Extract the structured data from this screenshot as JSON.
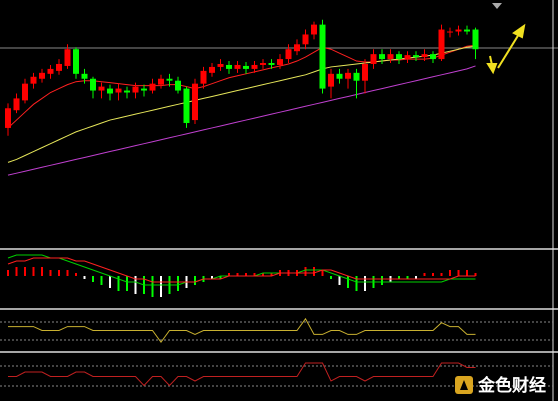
{
  "chart_data": [
    {
      "type": "candlestick",
      "ylim": [
        0,
        248
      ],
      "up_color": "#ff0000",
      "down_color": "#00ff00",
      "open": [
        120,
        138,
        148,
        165,
        170,
        175,
        178,
        183,
        200,
        175,
        170,
        158,
        160,
        156,
        158,
        156,
        160,
        158,
        164,
        170,
        168,
        160,
        128,
        165,
        176,
        182,
        184,
        180,
        183,
        180,
        184,
        186,
        184,
        190,
        198,
        205,
        215,
        225,
        162,
        175,
        170,
        176,
        168,
        185,
        195,
        190,
        195,
        190,
        194,
        192,
        195,
        190,
        218,
        218,
        220,
        220
      ],
      "high": [
        145,
        155,
        170,
        176,
        180,
        184,
        190,
        205,
        202,
        180,
        172,
        166,
        164,
        165,
        162,
        166,
        164,
        170,
        174,
        175,
        172,
        162,
        170,
        182,
        186,
        190,
        188,
        188,
        187,
        188,
        190,
        190,
        195,
        205,
        210,
        220,
        228,
        230,
        180,
        180,
        180,
        180,
        190,
        200,
        200,
        200,
        198,
        198,
        198,
        200,
        198,
        225,
        222,
        224,
        224,
        222
      ],
      "low": [
        112,
        135,
        145,
        160,
        166,
        170,
        174,
        180,
        170,
        165,
        150,
        150,
        148,
        148,
        150,
        150,
        152,
        155,
        160,
        162,
        155,
        120,
        124,
        160,
        172,
        178,
        175,
        176,
        175,
        176,
        180,
        180,
        180,
        186,
        194,
        200,
        210,
        155,
        150,
        165,
        160,
        150,
        155,
        180,
        185,
        186,
        185,
        186,
        188,
        188,
        186,
        188,
        212,
        214,
        215,
        190
      ],
      "close": [
        140,
        150,
        165,
        172,
        176,
        180,
        185,
        200,
        175,
        170,
        158,
        162,
        155,
        160,
        156,
        162,
        158,
        165,
        170,
        168,
        158,
        125,
        165,
        178,
        182,
        185,
        180,
        184,
        180,
        184,
        186,
        184,
        190,
        200,
        205,
        215,
        225,
        160,
        175,
        170,
        176,
        168,
        185,
        195,
        190,
        195,
        190,
        194,
        192,
        195,
        190,
        220,
        218,
        220,
        218,
        200
      ],
      "series": [
        {
          "color": "#ff2020",
          "values": [
            120,
            128,
            136,
            144,
            150,
            156,
            160,
            164,
            167,
            168,
            168,
            167,
            166,
            165,
            164,
            163,
            163,
            163,
            163,
            164,
            164,
            162,
            160,
            162,
            165,
            168,
            171,
            173,
            175,
            177,
            179,
            181,
            183,
            185,
            188,
            192,
            197,
            202,
            200,
            196,
            192,
            188,
            187,
            187,
            188,
            189,
            189,
            190,
            190,
            190,
            191,
            194,
            197,
            200,
            203,
            204
          ]
        },
        {
          "color": "#e6e65a",
          "values": [
            85,
            88,
            92,
            96,
            100,
            104,
            108,
            112,
            116,
            119,
            122,
            125,
            128,
            130,
            132,
            134,
            136,
            138,
            140,
            142,
            144,
            146,
            148,
            150,
            152,
            154,
            156,
            158,
            160,
            162,
            164,
            166,
            168,
            170,
            172,
            174,
            177,
            180,
            182,
            183,
            184,
            185,
            186,
            187,
            188,
            189,
            190,
            191,
            192,
            193,
            194,
            196,
            198,
            200,
            202,
            203
          ]
        },
        {
          "color": "#c040d0",
          "values": [
            72,
            74,
            76,
            78,
            80,
            82,
            84,
            86,
            88,
            90,
            92,
            94,
            96,
            98,
            100,
            102,
            104,
            106,
            108,
            110,
            112,
            114,
            116,
            118,
            120,
            122,
            124,
            126,
            128,
            130,
            132,
            134,
            136,
            138,
            140,
            142,
            144,
            146,
            148,
            150,
            152,
            154,
            156,
            158,
            160,
            162,
            164,
            166,
            168,
            170,
            172,
            174,
            176,
            178,
            180,
            183
          ]
        }
      ]
    },
    {
      "type": "macd",
      "ylim": [
        -10,
        8
      ],
      "up_color": "#ff0000",
      "down_color": "#00ff00",
      "values": [
        2,
        3,
        3,
        3,
        3,
        2,
        2,
        2,
        1,
        -1,
        -2,
        -3,
        -4,
        -5,
        -5,
        -6,
        -6,
        -7,
        -7,
        -6,
        -5,
        -4,
        -3,
        -2,
        -1,
        -1,
        1,
        1,
        1,
        1,
        1,
        1,
        2,
        2,
        2,
        3,
        3,
        2,
        -1,
        -3,
        -4,
        -5,
        -5,
        -4,
        -3,
        -2,
        -1,
        -1,
        -1,
        1,
        1,
        1,
        2,
        2,
        2,
        1
      ],
      "series": [
        {
          "color": "#00d000",
          "values": [
            6,
            7,
            7,
            7,
            7,
            6,
            6,
            5,
            4,
            3,
            2,
            1,
            0,
            -1,
            -2,
            -2,
            -3,
            -3,
            -3,
            -3,
            -3,
            -2,
            -2,
            -1,
            -1,
            0,
            0,
            0,
            0,
            0,
            1,
            1,
            1,
            1,
            1,
            2,
            2,
            2,
            1,
            0,
            -1,
            -2,
            -2,
            -2,
            -2,
            -2,
            -2,
            -2,
            -2,
            -2,
            -2,
            -2,
            -1,
            -1,
            -1,
            -1
          ]
        },
        {
          "color": "#ff2020",
          "values": [
            4,
            5,
            5,
            6,
            6,
            6,
            6,
            6,
            5,
            5,
            4,
            3,
            2,
            1,
            0,
            -1,
            -1,
            -2,
            -2,
            -2,
            -2,
            -2,
            -2,
            -1,
            -1,
            -1,
            0,
            0,
            0,
            0,
            0,
            0,
            1,
            1,
            1,
            1,
            1,
            2,
            2,
            1,
            0,
            -1,
            -1,
            -1,
            -1,
            -1,
            -1,
            -1,
            -1,
            -1,
            -1,
            -1,
            -1,
            0,
            0,
            0
          ]
        }
      ]
    },
    {
      "type": "line",
      "ylim": [
        0,
        10
      ],
      "series": [
        {
          "color": "#c8b030",
          "values": [
            6,
            6,
            6,
            6,
            5,
            5,
            5,
            6,
            6,
            6,
            5,
            5,
            5,
            5,
            5,
            5,
            5,
            5,
            2,
            5,
            5,
            5,
            4,
            5,
            5,
            5,
            5,
            5,
            5,
            5,
            5,
            5,
            5,
            5,
            5,
            8,
            4,
            4,
            5,
            5,
            4,
            4,
            5,
            5,
            5,
            5,
            5,
            5,
            5,
            5,
            5,
            7,
            6,
            6,
            4,
            4
          ]
        }
      ]
    },
    {
      "type": "line",
      "ylim": [
        0,
        10
      ],
      "series": [
        {
          "color": "#c02020",
          "values": [
            5,
            5,
            6,
            6,
            6,
            5,
            5,
            5,
            6,
            6,
            5,
            5,
            5,
            5,
            5,
            5,
            3,
            5,
            5,
            3,
            5,
            5,
            4,
            5,
            5,
            5,
            5,
            5,
            5,
            5,
            5,
            5,
            5,
            5,
            5,
            8,
            8,
            8,
            4,
            5,
            5,
            5,
            4,
            5,
            5,
            5,
            5,
            5,
            5,
            5,
            5,
            8,
            8,
            8,
            7,
            7
          ]
        }
      ]
    }
  ],
  "watermark": "金色财经"
}
